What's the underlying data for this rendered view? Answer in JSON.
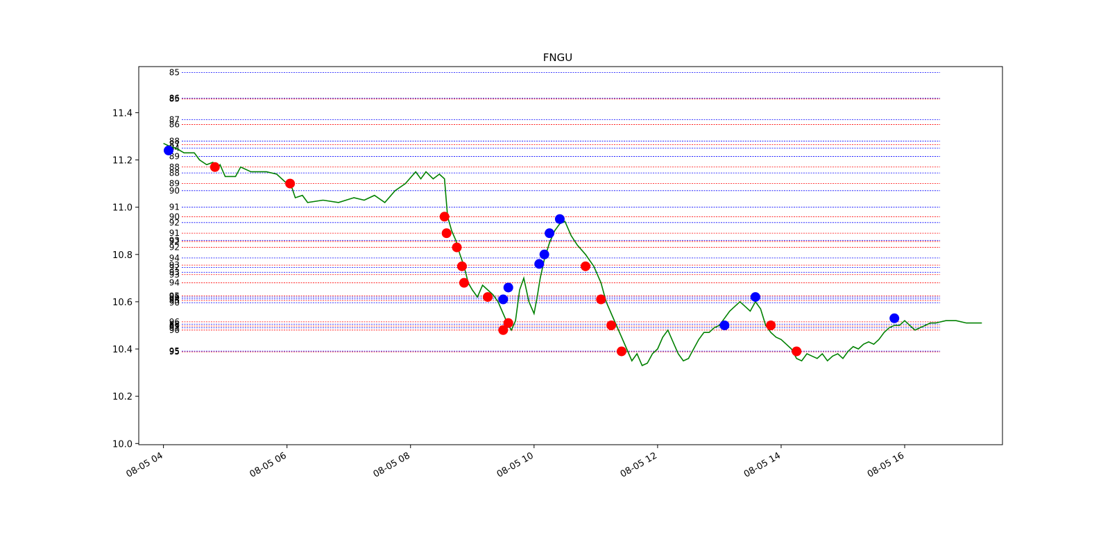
{
  "chart_data": {
    "type": "line",
    "title": "FNGU",
    "xlabel": "",
    "ylabel": "",
    "x_range": [
      "2024-08-05 03:36",
      "2024-08-05 17:35"
    ],
    "ylim": [
      9.995,
      11.595
    ],
    "y_ticks": [
      10.0,
      10.2,
      10.4,
      10.6,
      10.8,
      11.0,
      11.2,
      11.4
    ],
    "x_ticks": [
      "08-05 04",
      "08-05 06",
      "08-05 08",
      "08-05 10",
      "08-05 12",
      "08-05 14",
      "08-05 16"
    ],
    "x_tick_times": [
      "04:00",
      "06:00",
      "08:00",
      "10:00",
      "12:00",
      "14:00",
      "16:00"
    ],
    "grid": false,
    "legend": "none",
    "colors": {
      "price": "#008000",
      "buy": "#0000ff",
      "sell": "#ff0000"
    },
    "series": [
      {
        "role": "price",
        "points": [
          [
            "04:00",
            11.27
          ],
          [
            "04:05",
            11.26
          ],
          [
            "04:12",
            11.25
          ],
          [
            "04:20",
            11.23
          ],
          [
            "04:30",
            11.23
          ],
          [
            "04:35",
            11.2
          ],
          [
            "04:42",
            11.18
          ],
          [
            "04:48",
            11.19
          ],
          [
            "04:52",
            11.16
          ],
          [
            "04:55",
            11.18
          ],
          [
            "05:00",
            11.13
          ],
          [
            "05:10",
            11.13
          ],
          [
            "05:15",
            11.17
          ],
          [
            "05:25",
            11.15
          ],
          [
            "05:40",
            11.15
          ],
          [
            "05:50",
            11.14
          ],
          [
            "06:00",
            11.1
          ],
          [
            "06:05",
            11.08
          ],
          [
            "06:08",
            11.04
          ],
          [
            "06:15",
            11.05
          ],
          [
            "06:20",
            11.02
          ],
          [
            "06:35",
            11.03
          ],
          [
            "06:50",
            11.02
          ],
          [
            "07:05",
            11.04
          ],
          [
            "07:15",
            11.03
          ],
          [
            "07:25",
            11.05
          ],
          [
            "07:35",
            11.02
          ],
          [
            "07:45",
            11.07
          ],
          [
            "07:55",
            11.1
          ],
          [
            "08:05",
            11.15
          ],
          [
            "08:10",
            11.12
          ],
          [
            "08:15",
            11.15
          ],
          [
            "08:22",
            11.12
          ],
          [
            "08:28",
            11.14
          ],
          [
            "08:33",
            11.12
          ],
          [
            "08:36",
            10.96
          ],
          [
            "08:40",
            10.9
          ],
          [
            "08:44",
            10.86
          ],
          [
            "08:48",
            10.8
          ],
          [
            "08:52",
            10.75
          ],
          [
            "08:56",
            10.68
          ],
          [
            "09:00",
            10.65
          ],
          [
            "09:05",
            10.62
          ],
          [
            "09:10",
            10.67
          ],
          [
            "09:15",
            10.65
          ],
          [
            "09:20",
            10.63
          ],
          [
            "09:25",
            10.6
          ],
          [
            "09:30",
            10.55
          ],
          [
            "09:35",
            10.5
          ],
          [
            "09:38",
            10.48
          ],
          [
            "09:42",
            10.52
          ],
          [
            "09:46",
            10.65
          ],
          [
            "09:50",
            10.7
          ],
          [
            "09:55",
            10.6
          ],
          [
            "10:00",
            10.55
          ],
          [
            "10:03",
            10.62
          ],
          [
            "10:06",
            10.7
          ],
          [
            "10:10",
            10.78
          ],
          [
            "10:15",
            10.85
          ],
          [
            "10:20",
            10.9
          ],
          [
            "10:25",
            10.93
          ],
          [
            "10:30",
            10.94
          ],
          [
            "10:36",
            10.88
          ],
          [
            "10:42",
            10.84
          ],
          [
            "10:50",
            10.8
          ],
          [
            "10:58",
            10.75
          ],
          [
            "11:05",
            10.68
          ],
          [
            "11:10",
            10.6
          ],
          [
            "11:15",
            10.55
          ],
          [
            "11:20",
            10.5
          ],
          [
            "11:25",
            10.45
          ],
          [
            "11:30",
            10.4
          ],
          [
            "11:35",
            10.35
          ],
          [
            "11:40",
            10.38
          ],
          [
            "11:45",
            10.33
          ],
          [
            "11:50",
            10.34
          ],
          [
            "11:55",
            10.38
          ],
          [
            "12:00",
            10.4
          ],
          [
            "12:05",
            10.45
          ],
          [
            "12:10",
            10.48
          ],
          [
            "12:15",
            10.43
          ],
          [
            "12:20",
            10.38
          ],
          [
            "12:25",
            10.35
          ],
          [
            "12:30",
            10.36
          ],
          [
            "12:35",
            10.4
          ],
          [
            "12:40",
            10.44
          ],
          [
            "12:45",
            10.47
          ],
          [
            "12:50",
            10.47
          ],
          [
            "12:55",
            10.49
          ],
          [
            "13:00",
            10.5
          ],
          [
            "13:05",
            10.53
          ],
          [
            "13:10",
            10.56
          ],
          [
            "13:15",
            10.58
          ],
          [
            "13:20",
            10.6
          ],
          [
            "13:25",
            10.58
          ],
          [
            "13:30",
            10.56
          ],
          [
            "13:35",
            10.6
          ],
          [
            "13:40",
            10.57
          ],
          [
            "13:45",
            10.5
          ],
          [
            "13:50",
            10.47
          ],
          [
            "13:55",
            10.45
          ],
          [
            "14:00",
            10.44
          ],
          [
            "14:05",
            10.42
          ],
          [
            "14:10",
            10.4
          ],
          [
            "14:15",
            10.36
          ],
          [
            "14:20",
            10.35
          ],
          [
            "14:25",
            10.38
          ],
          [
            "14:30",
            10.37
          ],
          [
            "14:35",
            10.36
          ],
          [
            "14:40",
            10.38
          ],
          [
            "14:45",
            10.35
          ],
          [
            "14:50",
            10.37
          ],
          [
            "14:55",
            10.38
          ],
          [
            "15:00",
            10.36
          ],
          [
            "15:05",
            10.39
          ],
          [
            "15:10",
            10.41
          ],
          [
            "15:15",
            10.4
          ],
          [
            "15:20",
            10.42
          ],
          [
            "15:25",
            10.43
          ],
          [
            "15:30",
            10.42
          ],
          [
            "15:35",
            10.44
          ],
          [
            "15:40",
            10.47
          ],
          [
            "15:45",
            10.49
          ],
          [
            "15:50",
            10.5
          ],
          [
            "15:55",
            10.5
          ],
          [
            "16:00",
            10.52
          ],
          [
            "16:05",
            10.5
          ],
          [
            "16:10",
            10.48
          ],
          [
            "16:15",
            10.49
          ],
          [
            "16:20",
            10.5
          ],
          [
            "16:25",
            10.51
          ],
          [
            "16:30",
            10.51
          ],
          [
            "16:40",
            10.52
          ],
          [
            "16:50",
            10.52
          ],
          [
            "17:00",
            10.51
          ],
          [
            "17:15",
            10.51
          ]
        ]
      },
      {
        "role": "buy",
        "points": [
          [
            "04:05",
            11.24
          ],
          [
            "09:30",
            10.61
          ],
          [
            "09:35",
            10.66
          ],
          [
            "10:05",
            10.76
          ],
          [
            "10:10",
            10.8
          ],
          [
            "10:15",
            10.89
          ],
          [
            "10:25",
            10.95
          ],
          [
            "13:05",
            10.5
          ],
          [
            "13:35",
            10.62
          ],
          [
            "15:50",
            10.53
          ]
        ]
      },
      {
        "role": "sell",
        "points": [
          [
            "04:50",
            11.17
          ],
          [
            "06:03",
            11.1
          ],
          [
            "08:33",
            10.96
          ],
          [
            "08:35",
            10.89
          ],
          [
            "08:45",
            10.83
          ],
          [
            "08:50",
            10.75
          ],
          [
            "08:52",
            10.68
          ],
          [
            "09:15",
            10.62
          ],
          [
            "09:30",
            10.48
          ],
          [
            "09:35",
            10.51
          ],
          [
            "10:50",
            10.75
          ],
          [
            "11:05",
            10.61
          ],
          [
            "11:15",
            10.5
          ],
          [
            "11:25",
            10.39
          ],
          [
            "13:50",
            10.5
          ],
          [
            "14:15",
            10.39
          ]
        ]
      }
    ],
    "levels": [
      {
        "label": "85",
        "value": 11.57,
        "color": "#0000ff"
      },
      {
        "label": "86",
        "value": 11.461,
        "color": "#0000ff"
      },
      {
        "label": "85",
        "value": 11.458,
        "color": "#ff0000"
      },
      {
        "label": "87",
        "value": 11.37,
        "color": "#0000ff"
      },
      {
        "label": "86",
        "value": 11.35,
        "color": "#ff0000"
      },
      {
        "label": "88",
        "value": 11.28,
        "color": "#0000ff"
      },
      {
        "label": "87",
        "value": 11.265,
        "color": "#ff0000"
      },
      {
        "label": "84",
        "value": 11.25,
        "color": "#0000ff"
      },
      {
        "label": "89",
        "value": 11.215,
        "color": "#0000ff"
      },
      {
        "label": "88",
        "value": 11.17,
        "color": "#ff0000"
      },
      {
        "label": "88",
        "value": 11.145,
        "color": "#0000ff"
      },
      {
        "label": "89",
        "value": 11.1,
        "color": "#ff0000"
      },
      {
        "label": "90",
        "value": 11.07,
        "color": "#0000ff"
      },
      {
        "label": "91",
        "value": 11.0,
        "color": "#0000ff"
      },
      {
        "label": "90",
        "value": 10.96,
        "color": "#ff0000"
      },
      {
        "label": "92",
        "value": 10.935,
        "color": "#0000ff"
      },
      {
        "label": "91",
        "value": 10.89,
        "color": "#ff0000"
      },
      {
        "label": "93",
        "value": 10.86,
        "color": "#0000ff"
      },
      {
        "label": "92",
        "value": 10.855,
        "color": "#ff0000"
      },
      {
        "label": "92",
        "value": 10.83,
        "color": "#ff0000"
      },
      {
        "label": "94",
        "value": 10.785,
        "color": "#0000ff"
      },
      {
        "label": "93",
        "value": 10.755,
        "color": "#ff0000"
      },
      {
        "label": "92",
        "value": 10.745,
        "color": "#0000ff"
      },
      {
        "label": "93",
        "value": 10.725,
        "color": "#0000ff"
      },
      {
        "label": "93",
        "value": 10.715,
        "color": "#ff0000"
      },
      {
        "label": "94",
        "value": 10.68,
        "color": "#ff0000"
      },
      {
        "label": "95",
        "value": 10.625,
        "color": "#ff0000"
      },
      {
        "label": "96",
        "value": 10.62,
        "color": "#0000ff"
      },
      {
        "label": "94",
        "value": 10.612,
        "color": "#0000ff"
      },
      {
        "label": "95",
        "value": 10.605,
        "color": "#ff0000"
      },
      {
        "label": "90",
        "value": 10.595,
        "color": "#0000ff"
      },
      {
        "label": "96",
        "value": 10.515,
        "color": "#ff0000"
      },
      {
        "label": "88",
        "value": 10.505,
        "color": "#0000ff"
      },
      {
        "label": "89",
        "value": 10.497,
        "color": "#ff0000"
      },
      {
        "label": "91",
        "value": 10.49,
        "color": "#0000ff"
      },
      {
        "label": "90",
        "value": 10.48,
        "color": "#ff0000"
      },
      {
        "label": "95",
        "value": 10.391,
        "color": "#0000ff"
      },
      {
        "label": "95",
        "value": 10.388,
        "color": "#ff0000"
      }
    ]
  }
}
